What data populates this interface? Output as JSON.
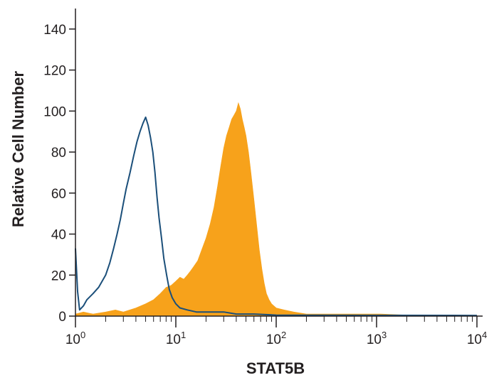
{
  "chart_data": {
    "type": "histogram",
    "xlabel": "STAT5B",
    "ylabel": "Relative Cell Number",
    "x_scale": "log",
    "xlim": [
      1,
      10000
    ],
    "ylim": [
      0,
      150
    ],
    "x_ticks": [
      {
        "value": 1,
        "base": "10",
        "exp": "0"
      },
      {
        "value": 10,
        "base": "10",
        "exp": "1"
      },
      {
        "value": 100,
        "base": "10",
        "exp": "2"
      },
      {
        "value": 1000,
        "base": "10",
        "exp": "3"
      },
      {
        "value": 10000,
        "base": "10",
        "exp": "4"
      }
    ],
    "y_ticks": [
      "0",
      "20",
      "40",
      "60",
      "80",
      "100",
      "120",
      "140"
    ],
    "grid": false,
    "series": [
      {
        "style": "filled",
        "color": "#f7a21b",
        "points": [
          [
            1.0,
            1
          ],
          [
            1.2,
            2
          ],
          [
            1.5,
            1
          ],
          [
            2.0,
            2
          ],
          [
            2.5,
            3
          ],
          [
            3.0,
            2
          ],
          [
            4.0,
            4
          ],
          [
            5.0,
            6
          ],
          [
            6.0,
            8
          ],
          [
            7.0,
            11
          ],
          [
            8.0,
            14
          ],
          [
            9.0,
            15
          ],
          [
            10.0,
            17
          ],
          [
            11.0,
            19
          ],
          [
            12.0,
            18
          ],
          [
            13.0,
            20
          ],
          [
            14.0,
            22
          ],
          [
            15.0,
            24
          ],
          [
            16.5,
            27
          ],
          [
            18.0,
            32
          ],
          [
            20.0,
            38
          ],
          [
            22.0,
            45
          ],
          [
            24.0,
            53
          ],
          [
            26.0,
            63
          ],
          [
            28.0,
            73
          ],
          [
            30.0,
            82
          ],
          [
            32.0,
            88
          ],
          [
            34.0,
            92
          ],
          [
            36.0,
            96
          ],
          [
            38.0,
            98
          ],
          [
            40.0,
            100
          ],
          [
            42.0,
            104
          ],
          [
            44.0,
            101
          ],
          [
            46.0,
            96
          ],
          [
            48.0,
            92
          ],
          [
            50.0,
            88
          ],
          [
            53.0,
            80
          ],
          [
            56.0,
            70
          ],
          [
            60.0,
            57
          ],
          [
            64.0,
            44
          ],
          [
            68.0,
            32
          ],
          [
            72.0,
            23
          ],
          [
            76.0,
            16
          ],
          [
            80.0,
            11
          ],
          [
            85.0,
            8
          ],
          [
            90.0,
            6
          ],
          [
            100.0,
            4
          ],
          [
            120.0,
            3
          ],
          [
            150.0,
            2
          ],
          [
            200.0,
            1
          ],
          [
            300.0,
            1
          ],
          [
            500.0,
            1
          ],
          [
            800.0,
            1
          ],
          [
            1100.0,
            1
          ],
          [
            2000.0,
            0.5
          ],
          [
            10000.0,
            0.3
          ]
        ]
      },
      {
        "style": "outline",
        "color": "#1b4f7a",
        "points": [
          [
            1.0,
            33
          ],
          [
            1.05,
            12
          ],
          [
            1.1,
            3
          ],
          [
            1.2,
            5
          ],
          [
            1.3,
            8
          ],
          [
            1.5,
            11
          ],
          [
            1.7,
            14
          ],
          [
            2.0,
            20
          ],
          [
            2.2,
            26
          ],
          [
            2.4,
            33
          ],
          [
            2.6,
            40
          ],
          [
            2.8,
            47
          ],
          [
            3.0,
            55
          ],
          [
            3.2,
            62
          ],
          [
            3.5,
            70
          ],
          [
            3.8,
            78
          ],
          [
            4.1,
            85
          ],
          [
            4.4,
            90
          ],
          [
            4.7,
            94
          ],
          [
            5.0,
            97
          ],
          [
            5.3,
            93
          ],
          [
            5.6,
            87
          ],
          [
            5.9,
            80
          ],
          [
            6.2,
            70
          ],
          [
            6.5,
            58
          ],
          [
            6.8,
            48
          ],
          [
            7.2,
            38
          ],
          [
            7.6,
            28
          ],
          [
            8.1,
            20
          ],
          [
            8.6,
            13
          ],
          [
            9.2,
            9
          ],
          [
            10.0,
            6
          ],
          [
            11.0,
            4
          ],
          [
            13.0,
            3
          ],
          [
            16.0,
            2
          ],
          [
            20.0,
            2
          ],
          [
            30.0,
            2
          ],
          [
            40.0,
            1
          ],
          [
            60.0,
            1
          ],
          [
            100.0,
            0.5
          ],
          [
            10000.0,
            0.3
          ]
        ]
      }
    ]
  }
}
